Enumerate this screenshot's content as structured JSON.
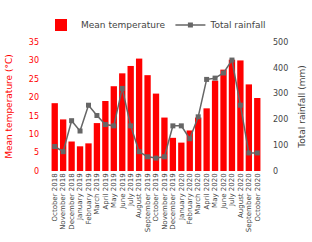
{
  "chart_data": {
    "type": "bar",
    "categories": [
      "October 2018",
      "November 2018",
      "December 2018",
      "January 2019",
      "February 2019",
      "March 2019",
      "April 2019",
      "May 2019",
      "June 2019",
      "July 2019",
      "August 2019",
      "September 2019",
      "October 2019",
      "November 2019",
      "December 2019",
      "January 2020",
      "February 2020",
      "March 2020",
      "April 2020",
      "May 2020",
      "June 2020",
      "July 2020",
      "August 2020",
      "September 2020",
      "October 2020"
    ],
    "series": [
      {
        "name": "Mean temperature",
        "type": "bar",
        "color": "#FF0000",
        "values": [
          18.4,
          14.0,
          8.0,
          6.7,
          7.5,
          13.0,
          19.0,
          23.0,
          26.5,
          28.5,
          30.5,
          26.0,
          21.0,
          14.5,
          9.0,
          7.7,
          11.0,
          14.5,
          17.0,
          24.5,
          27.5,
          30.2,
          30.0,
          23.5,
          19.8
        ]
      },
      {
        "name": "Total rainfall",
        "type": "line",
        "color": "#666666",
        "marker": "square",
        "axis": "y2",
        "values": [
          95,
          75,
          195,
          155,
          255,
          215,
          180,
          175,
          320,
          175,
          75,
          55,
          50,
          55,
          175,
          175,
          125,
          210,
          355,
          360,
          380,
          430,
          255,
          70,
          70
        ]
      }
    ],
    "ylabel": "Mean temperature (°C)",
    "y2label": "Total rainfall (mm)",
    "ylim": [
      0,
      35
    ],
    "yticks": [
      0,
      5,
      10,
      15,
      20,
      25,
      30,
      35
    ],
    "y2lim": [
      0,
      500
    ],
    "y2ticks": [
      0,
      100,
      200,
      300,
      400,
      500
    ],
    "legend": "upper right",
    "grid": false
  }
}
